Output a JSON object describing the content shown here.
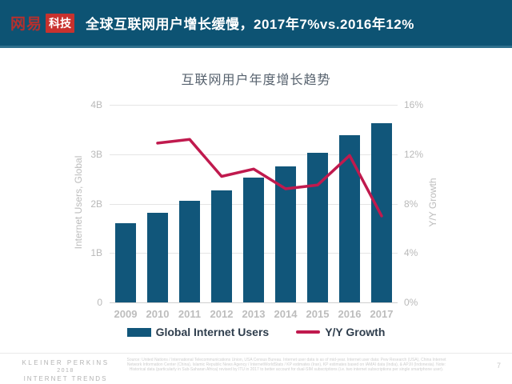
{
  "colors": {
    "header_bg": "#0d5373",
    "logo_red": "#c8322e",
    "bar_blue": "#11567a",
    "line_red": "#c01a4e"
  },
  "header": {
    "logo_netease": "网易",
    "logo_tech": "科技",
    "title": "全球互联网用户增长缓慢，2017年7%vs.2016年12%"
  },
  "chart_data": {
    "type": "bar",
    "title": "互联网用户年度增长趋势",
    "categories": [
      "2009",
      "2010",
      "2011",
      "2012",
      "2013",
      "2014",
      "2015",
      "2016",
      "2017"
    ],
    "series": [
      {
        "name": "Global Internet Users",
        "type": "bar",
        "axis": "left",
        "unit": "B",
        "color": "#11567a",
        "values": [
          1.6,
          1.82,
          2.05,
          2.27,
          2.52,
          2.75,
          3.03,
          3.38,
          3.62
        ]
      },
      {
        "name": "Y/Y Growth",
        "type": "line",
        "axis": "right",
        "unit": "%",
        "color": "#c01a4e",
        "values": [
          null,
          12.9,
          13.2,
          10.2,
          10.8,
          9.2,
          9.5,
          11.9,
          7.0
        ]
      }
    ],
    "left_axis": {
      "label": "Internet Users, Global",
      "min": 0,
      "max": 4,
      "ticks": [
        "4B",
        "3B",
        "2B",
        "1B",
        "0"
      ]
    },
    "right_axis": {
      "label": "Y/Y Growth",
      "min": 0,
      "max": 16,
      "ticks": [
        "16%",
        "12%",
        "8%",
        "4%",
        "0%"
      ]
    },
    "grid": true,
    "legend_position": "bottom"
  },
  "footer": {
    "brand_line1": "KLEINER PERKINS",
    "brand_line2": "2018",
    "brand_line3": "INTERNET TRENDS",
    "source": "Source: United Nations / International Telecommunications Union, USA Census Bureau. Internet user data is as of mid-year. Internet user data: Pew Research (USA), China Internet Network Information Center (China), Islamic Republic News Agency / InternetWorldStats / KP estimates (Iran), KP estimates based on IAMAI data (India), & APJII (Indonesia). Note: Historical data (particularly in Sub-Saharan Africa) revised by ITU in 2017 to better account for dual-SIM subscriptions (i.e. two internet subscriptions per single smartphone user).",
    "page_number": "7"
  }
}
